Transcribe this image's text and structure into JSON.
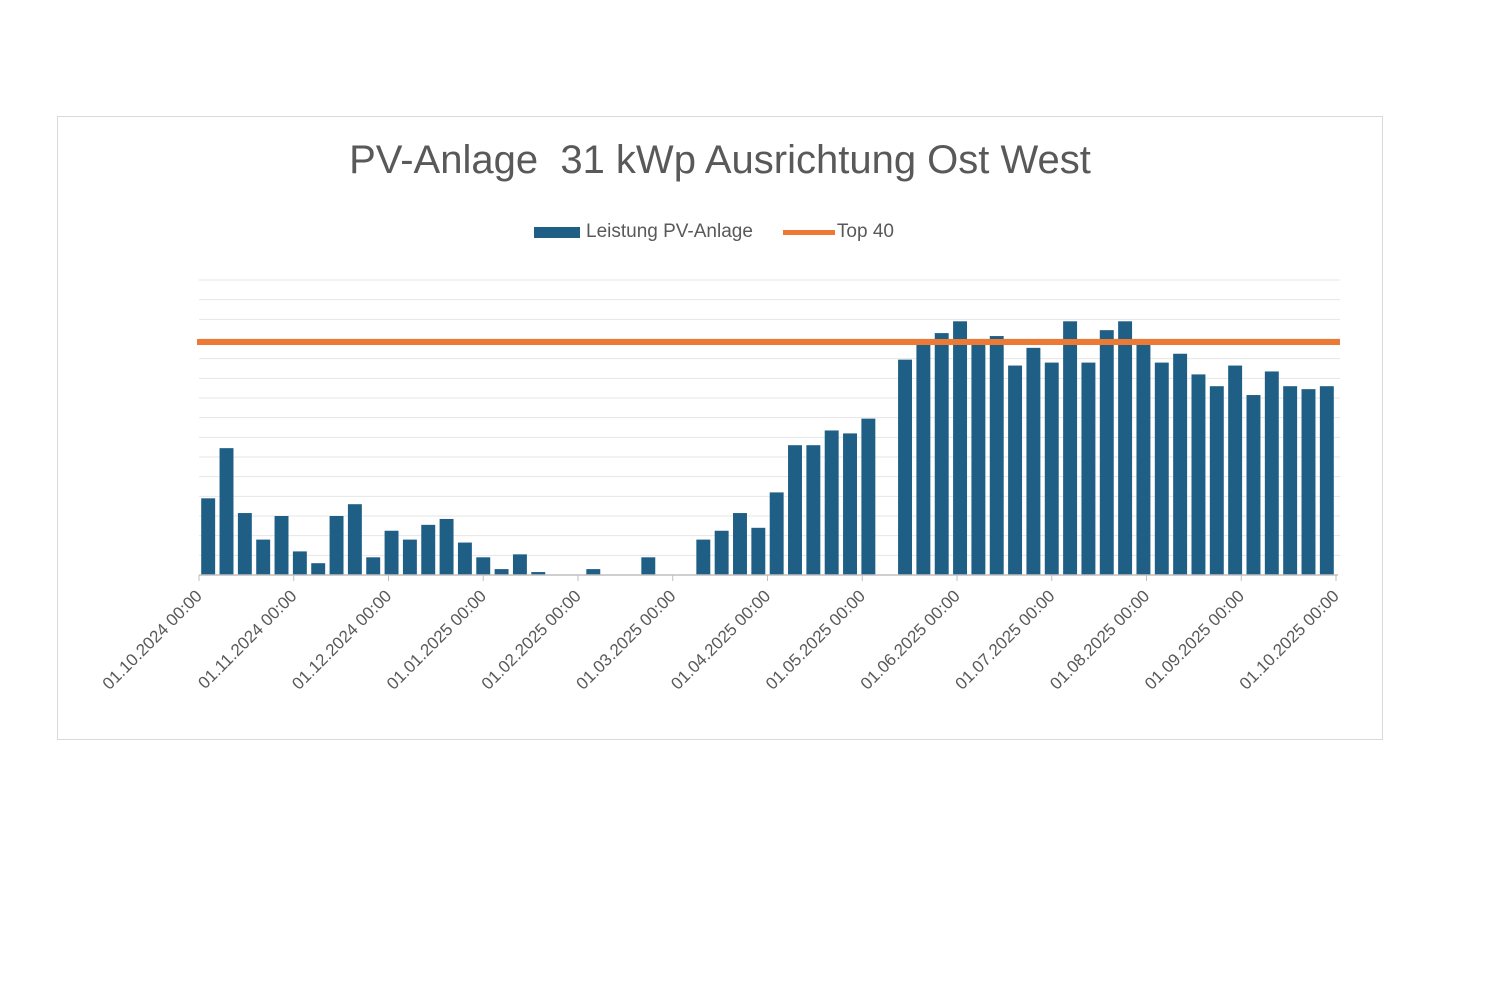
{
  "chart_data": {
    "type": "bar",
    "title": "PV-Anlage  31 kWp Ausrichtung Ost West",
    "xlabel": "",
    "ylabel": "",
    "x_tick_labels": [
      "01.10.2024 00:00",
      "01.11.2024 00:00",
      "01.12.2024 00:00",
      "01.01.2025 00:00",
      "01.02.2025 00:00",
      "01.03.2025 00:00",
      "01.04.2025 00:00",
      "01.05.2025 00:00",
      "01.06.2025 00:00",
      "01.07.2025 00:00",
      "01.08.2025 00:00",
      "01.09.2025 00:00",
      "01.10.2025 00:00"
    ],
    "x_range": [
      "01.10.2024 00:00",
      "01.10.2025 00:00"
    ],
    "y_range": [
      0,
      1
    ],
    "y_axis_labels_shown": false,
    "grid": true,
    "legend_position": "top",
    "series": [
      {
        "name": "Leistung PV-Anlage",
        "type": "bar",
        "color": "#1f5f86",
        "values": [
          0.26,
          0.43,
          0.21,
          0.12,
          0.2,
          0.08,
          0.04,
          0.2,
          0.24,
          0.06,
          0.15,
          0.12,
          0.17,
          0.19,
          0.11,
          0.06,
          0.02,
          0.07,
          0.01,
          0.0,
          0.0,
          0.02,
          0.0,
          0.0,
          0.06,
          0.0,
          0.0,
          0.12,
          0.15,
          0.21,
          0.16,
          0.28,
          0.44,
          0.44,
          0.49,
          0.48,
          0.53,
          0.0,
          0.73,
          0.78,
          0.82,
          0.86,
          0.79,
          0.81,
          0.71,
          0.77,
          0.72,
          0.86,
          0.72,
          0.83,
          0.86,
          0.79,
          0.72,
          0.75,
          0.68,
          0.64,
          0.71,
          0.61,
          0.69,
          0.64,
          0.63,
          0.64
        ]
      },
      {
        "name": "Top 40",
        "type": "line",
        "color": "#ec7a35",
        "value": 0.79
      }
    ]
  }
}
